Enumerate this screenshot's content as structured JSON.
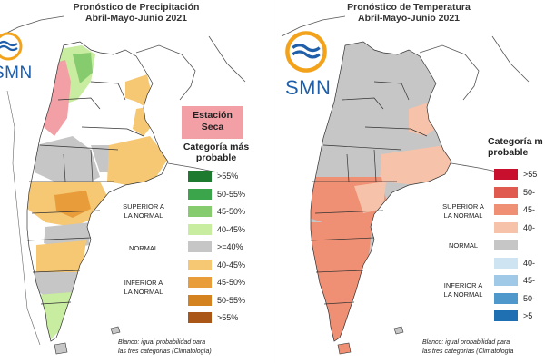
{
  "left": {
    "title_line1": "Pronóstico de Precipitación",
    "title_line2": "Abril-Mayo-Junio 2021",
    "logo_text": "SMN",
    "estacion_line1": "Estación",
    "estacion_line2": "Seca",
    "legend_title_line1": "Categoría más",
    "legend_title_line2": "probable",
    "superior_line1": "SUPERIOR A",
    "superior_line2": "LA NORMAL",
    "normal": "NORMAL",
    "inferior_line1": "INFERIOR A",
    "inferior_line2": "LA NORMAL",
    "legend": [
      {
        "label": ">55%",
        "color": "#1e7a2e"
      },
      {
        "label": "50-55%",
        "color": "#3aa54a"
      },
      {
        "label": "45-50%",
        "color": "#86cc6e"
      },
      {
        "label": "40-45%",
        "color": "#c8eca0"
      },
      {
        "label": ">=40%",
        "color": "#c6c6c6"
      },
      {
        "label": "40-45%",
        "color": "#f6c873"
      },
      {
        "label": "45-50%",
        "color": "#e89c3a"
      },
      {
        "label": "50-55%",
        "color": "#d4811f"
      },
      {
        "label": ">55%",
        "color": "#a95617"
      }
    ],
    "note_line1": "Blanco: igual probabilidad para",
    "note_line2": "las tres categorías (Climatología)"
  },
  "right": {
    "title_line1": "Pronóstico de Temperatura",
    "title_line2": "Abril-Mayo-Junio 2021",
    "logo_text": "SMN",
    "legend_title_line1": "Categoría m",
    "legend_title_line2": "probable",
    "superior_line1": "SUPERIOR A",
    "superior_line2": "LA NORMAL",
    "normal": "NORMAL",
    "inferior_line1": "INFERIOR A",
    "inferior_line2": "LA NORMAL",
    "legend": [
      {
        "label": ">55",
        "color": "#c8102e"
      },
      {
        "label": "50-",
        "color": "#e05a4f"
      },
      {
        "label": "45-",
        "color": "#ef8f73"
      },
      {
        "label": "40-",
        "color": "#f6c3aa"
      },
      {
        "label": "",
        "color": "#c6c6c6"
      },
      {
        "label": "40-",
        "color": "#cfe4f3"
      },
      {
        "label": "45-",
        "color": "#9fc9e6"
      },
      {
        "label": "50-",
        "color": "#4f98cc"
      },
      {
        "label": ">5",
        "color": "#1f6fb3"
      }
    ],
    "note_line1": "Blanco: igual probabilidad para",
    "note_line2": "las tres categorías (Climatología"
  },
  "colors": {
    "map_gray": "#c6c6c6",
    "border": "#333333",
    "logo_blue": "#1f5ea8",
    "logo_orange": "#f3a21b"
  }
}
